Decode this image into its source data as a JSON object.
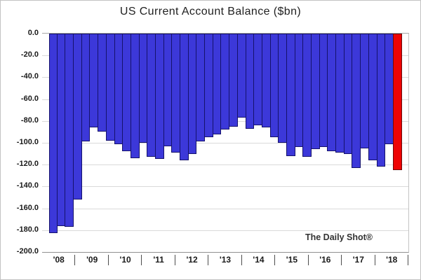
{
  "title": "US Current Account Balance ($bn)",
  "watermark": "The Daily Shot®",
  "colors": {
    "bar": "#3c38d9",
    "bar_border": "#15126b",
    "highlight": "#ee0404",
    "highlight_border": "#6b0b0b",
    "grid": "#dadada",
    "zero_line": "#a8a8a8",
    "axis_line": "#8f8f8f",
    "frame": "#c4c4c4",
    "text": "#1a1a1a"
  },
  "y_axis": {
    "labels": [
      "0.0",
      "-20.0",
      "-40.0",
      "-60.0",
      "-80.0",
      "-100.0",
      "-120.0",
      "-140.0",
      "-160.0",
      "-180.0",
      "-200.0"
    ],
    "max": 0,
    "min": -200,
    "step": 20
  },
  "x_axis": {
    "years": [
      "'08",
      "'09",
      "'10",
      "'11",
      "'12",
      "'13",
      "'14",
      "'15",
      "'16",
      "'17",
      "'18"
    ]
  },
  "chart_data": {
    "type": "bar",
    "title": "US Current Account Balance ($bn)",
    "unit": "$bn",
    "ylim": [
      -200,
      0
    ],
    "grid": "horizontal",
    "legend": "none",
    "annotation": "The Daily Shot®",
    "x": [
      "2008 Q1",
      "2008 Q2",
      "2008 Q3",
      "2008 Q4",
      "2009 Q1",
      "2009 Q2",
      "2009 Q3",
      "2009 Q4",
      "2010 Q1",
      "2010 Q2",
      "2010 Q3",
      "2010 Q4",
      "2011 Q1",
      "2011 Q2",
      "2011 Q3",
      "2011 Q4",
      "2012 Q1",
      "2012 Q2",
      "2012 Q3",
      "2012 Q4",
      "2013 Q1",
      "2013 Q2",
      "2013 Q3",
      "2013 Q4",
      "2014 Q1",
      "2014 Q2",
      "2014 Q3",
      "2014 Q4",
      "2015 Q1",
      "2015 Q2",
      "2015 Q3",
      "2015 Q4",
      "2016 Q1",
      "2016 Q2",
      "2016 Q3",
      "2016 Q4",
      "2017 Q1",
      "2017 Q2",
      "2017 Q3",
      "2017 Q4",
      "2018 Q1",
      "2018 Q2",
      "2018 Q3"
    ],
    "values": [
      -183,
      -176,
      -177,
      -152,
      -99,
      -86,
      -90,
      -98,
      -101,
      -108,
      -114,
      -100,
      -113,
      -115,
      -103,
      -109,
      -116,
      -110,
      -99,
      -95,
      -92,
      -88,
      -85,
      -77,
      -87,
      -84,
      -86,
      -95,
      -100,
      -112,
      -104,
      -113,
      -106,
      -104,
      -108,
      -109,
      -110,
      -123,
      -105,
      -116,
      -122,
      -101,
      -125
    ],
    "highlight_index": 42,
    "highlight_meaning": "latest quarter shown in red"
  }
}
